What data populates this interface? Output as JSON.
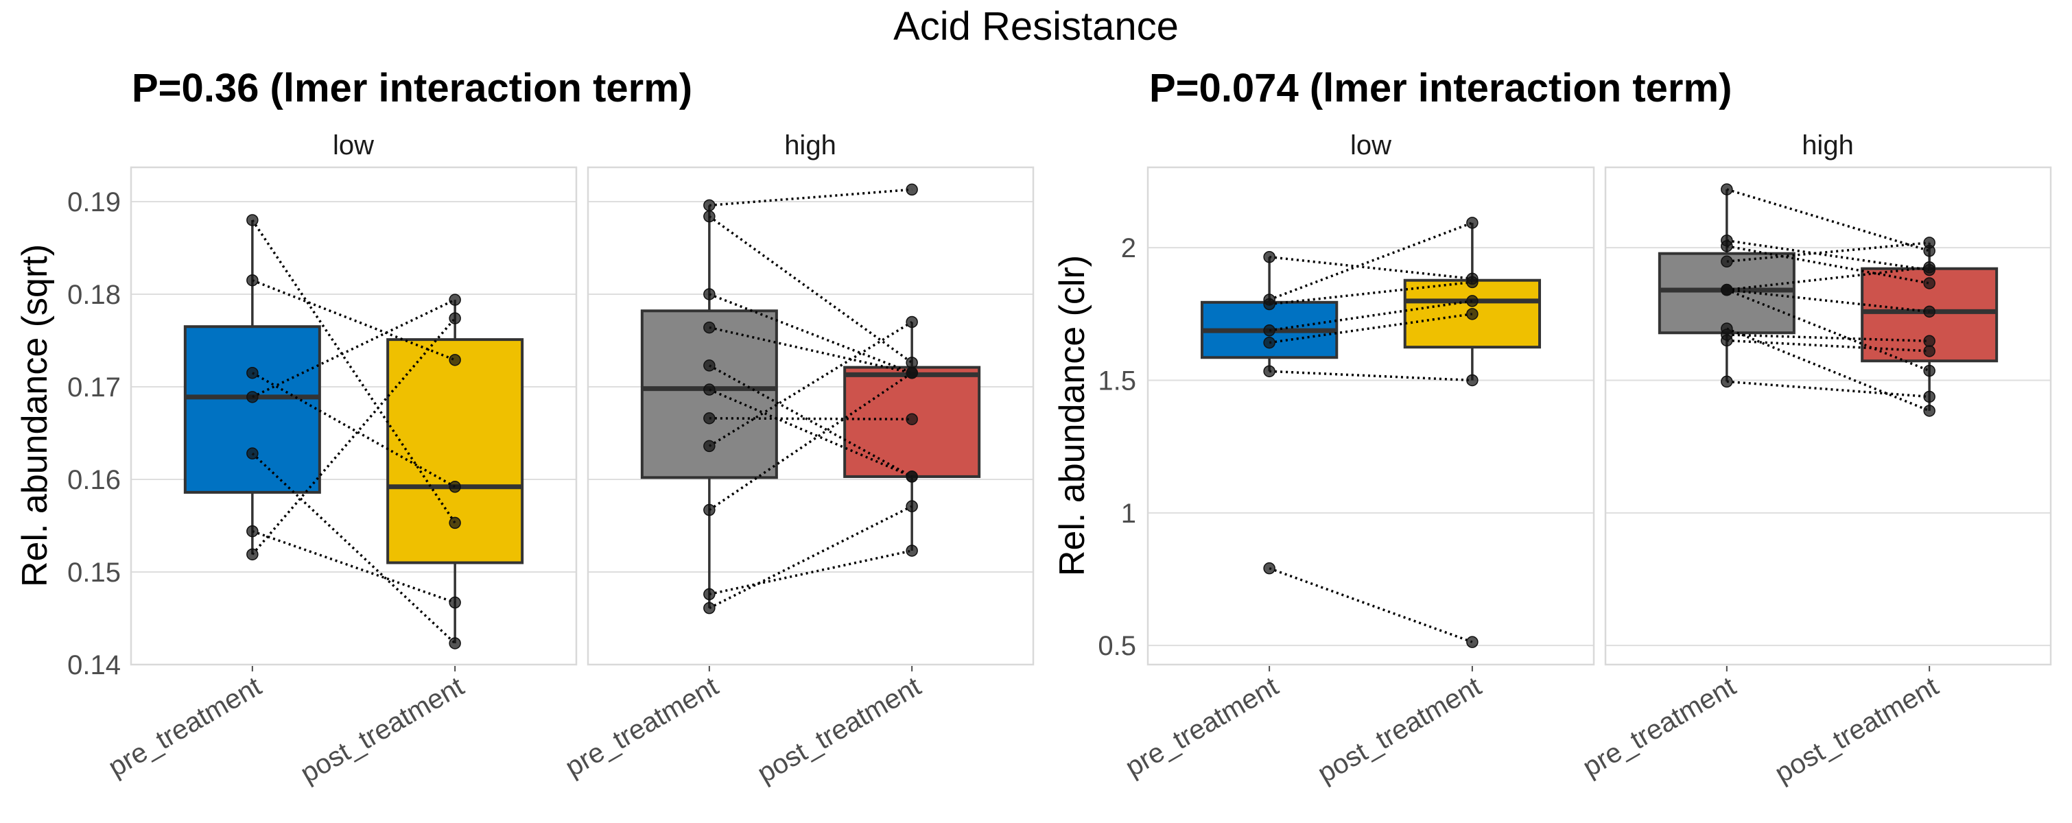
{
  "chart_data": {
    "type": "box",
    "title": "Acid Resistance",
    "colors": {
      "low_pre": "#0072C2",
      "low_post": "#EFC000",
      "high_pre": "#868686",
      "high_post": "#CD534C"
    },
    "plots": [
      {
        "subtitle": "P=0.36 (lmer interaction term)",
        "ylabel": "Rel. abundance (sqrt)",
        "ylim": [
          0.14,
          0.1937
        ],
        "yticks": [
          0.14,
          0.15,
          0.16,
          0.17,
          0.18,
          0.19
        ],
        "ytick_labels": [
          "0.14",
          "0.15",
          "0.16",
          "0.17",
          "0.18",
          "0.19"
        ],
        "grid": true,
        "facets": [
          {
            "label": "low",
            "categories": [
              "pre_treatment",
              "post_treatment"
            ],
            "boxes": [
              {
                "q1": 0.1586,
                "median": 0.1689,
                "q3": 0.1765,
                "whisker_low": 0.1519,
                "whisker_high": 0.188,
                "color_key": "low_pre"
              },
              {
                "q1": 0.151,
                "median": 0.1592,
                "q3": 0.1751,
                "whisker_low": 0.1423,
                "whisker_high": 0.1794,
                "color_key": "low_post"
              }
            ],
            "pairs": [
              [
                0.188,
                0.1553
              ],
              [
                0.1815,
                0.1729
              ],
              [
                0.1715,
                0.1592
              ],
              [
                0.1689,
                0.1794
              ],
              [
                0.1628,
                0.1423
              ],
              [
                0.1544,
                0.1467
              ],
              [
                0.1519,
                0.1774
              ]
            ]
          },
          {
            "label": "high",
            "categories": [
              "pre_treatment",
              "post_treatment"
            ],
            "boxes": [
              {
                "q1": 0.1602,
                "median": 0.1698,
                "q3": 0.1782,
                "whisker_low": 0.1461,
                "whisker_high": 0.1896,
                "color_key": "high_pre"
              },
              {
                "q1": 0.1603,
                "median": 0.1713,
                "q3": 0.1721,
                "whisker_low": 0.1523,
                "whisker_high": 0.177,
                "color_key": "high_post"
              }
            ],
            "pairs": [
              [
                0.1896,
                0.1913
              ],
              [
                0.1884,
                0.1726
              ],
              [
                0.18,
                0.1715
              ],
              [
                0.1764,
                0.1715
              ],
              [
                0.1723,
                0.1603
              ],
              [
                0.1697,
                0.1603
              ],
              [
                0.1666,
                0.1665
              ],
              [
                0.1636,
                0.177
              ],
              [
                0.1567,
                0.1715
              ],
              [
                0.1476,
                0.1523
              ],
              [
                0.1461,
                0.1571
              ]
            ]
          }
        ]
      },
      {
        "subtitle": "P=0.074 (lmer interaction term)",
        "ylabel": "Rel. abundance (clr)",
        "ylim": [
          0.428,
          2.303
        ],
        "yticks": [
          0.5,
          1,
          1.5,
          2
        ],
        "ytick_labels": [
          "0.5",
          "1",
          "1.5",
          "2"
        ],
        "grid": true,
        "facets": [
          {
            "label": "low",
            "categories": [
              "pre_treatment",
              "post_treatment"
            ],
            "boxes": [
              {
                "q1": 1.586,
                "median": 1.687,
                "q3": 1.794,
                "whisker_low": 1.534,
                "whisker_high": 1.965,
                "color_key": "low_pre"
              },
              {
                "q1": 1.625,
                "median": 1.799,
                "q3": 1.877,
                "whisker_low": 1.5,
                "whisker_high": 2.094,
                "color_key": "low_post"
              }
            ],
            "pairs": [
              [
                1.965,
                1.883
              ],
              [
                1.804,
                2.094
              ],
              [
                1.787,
                1.87
              ],
              [
                1.688,
                1.799
              ],
              [
                1.642,
                1.75
              ],
              [
                1.534,
                1.5
              ],
              [
                0.791,
                0.513
              ]
            ]
          },
          {
            "label": "high",
            "categories": [
              "pre_treatment",
              "post_treatment"
            ],
            "boxes": [
              {
                "q1": 1.679,
                "median": 1.84,
                "q3": 1.978,
                "whisker_low": 1.495,
                "whisker_high": 2.22,
                "color_key": "high_pre"
              },
              {
                "q1": 1.573,
                "median": 1.759,
                "q3": 1.921,
                "whisker_low": 1.385,
                "whisker_high": 2.019,
                "color_key": "high_post"
              }
            ],
            "pairs": [
              [
                2.22,
                1.988
              ],
              [
                2.027,
                1.916
              ],
              [
                2.006,
                1.866
              ],
              [
                1.948,
                2.019
              ],
              [
                1.841,
                1.926
              ],
              [
                1.841,
                1.759
              ],
              [
                1.841,
                1.536
              ],
              [
                1.695,
                1.385
              ],
              [
                1.672,
                1.648
              ],
              [
                1.65,
                1.61
              ],
              [
                1.495,
                1.438
              ]
            ]
          }
        ]
      }
    ]
  }
}
